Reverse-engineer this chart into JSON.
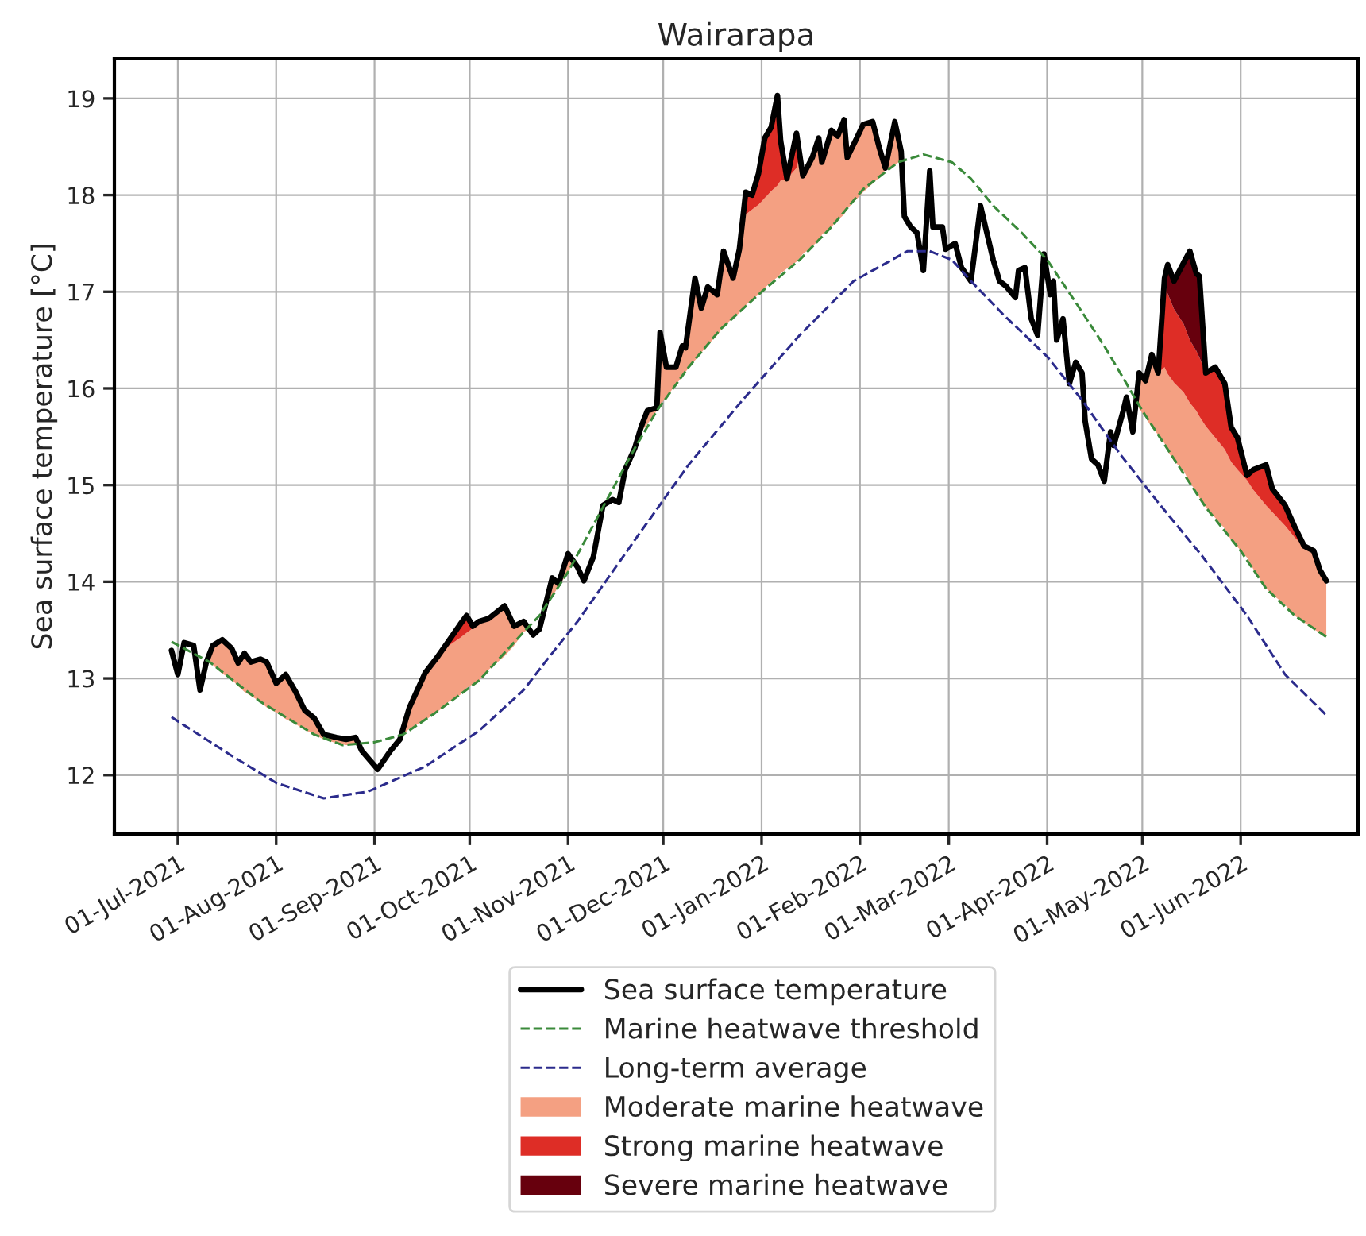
{
  "chart_data": {
    "type": "line",
    "title": "Wairarapa",
    "ylabel": "Sea surface temperature [°C]",
    "xlim": [
      "2021-06-11",
      "2022-07-08"
    ],
    "xticks": [
      {
        "value": "2021-07-01",
        "label": "01-Jul-2021"
      },
      {
        "value": "2021-08-01",
        "label": "01-Aug-2021"
      },
      {
        "value": "2021-09-01",
        "label": "01-Sep-2021"
      },
      {
        "value": "2021-10-01",
        "label": "01-Oct-2021"
      },
      {
        "value": "2021-11-01",
        "label": "01-Nov-2021"
      },
      {
        "value": "2021-12-01",
        "label": "01-Dec-2021"
      },
      {
        "value": "2022-01-01",
        "label": "01-Jan-2022"
      },
      {
        "value": "2022-02-01",
        "label": "01-Feb-2022"
      },
      {
        "value": "2022-03-01",
        "label": "01-Mar-2022"
      },
      {
        "value": "2022-04-01",
        "label": "01-Apr-2022"
      },
      {
        "value": "2022-05-01",
        "label": "01-May-2022"
      },
      {
        "value": "2022-06-01",
        "label": "01-Jun-2022"
      }
    ],
    "ylim": [
      11.39,
      19.41
    ],
    "yticks": [
      12,
      13,
      14,
      15,
      16,
      17,
      18,
      19
    ],
    "grid": true,
    "legend": "bottom",
    "series": [
      {
        "name": "Sea surface temperature",
        "color": "#000000",
        "line_style": "solid",
        "x": [
          "2021-06-29",
          "2021-07-01",
          "2021-07-03",
          "2021-07-06",
          "2021-07-08",
          "2021-07-10",
          "2021-07-12",
          "2021-07-15",
          "2021-07-18",
          "2021-07-20",
          "2021-07-22",
          "2021-07-24",
          "2021-07-27",
          "2021-07-29",
          "2021-08-01",
          "2021-08-04",
          "2021-08-07",
          "2021-08-10",
          "2021-08-13",
          "2021-08-16",
          "2021-08-20",
          "2021-08-23",
          "2021-08-26",
          "2021-08-28",
          "2021-09-02",
          "2021-09-06",
          "2021-09-09",
          "2021-09-12",
          "2021-09-17",
          "2021-09-21",
          "2021-09-24",
          "2021-09-28",
          "2021-09-30",
          "2021-10-02",
          "2021-10-04",
          "2021-10-07",
          "2021-10-12",
          "2021-10-15",
          "2021-10-18",
          "2021-10-21",
          "2021-10-23",
          "2021-10-27",
          "2021-10-29",
          "2021-11-01",
          "2021-11-04",
          "2021-11-06",
          "2021-11-09",
          "2021-11-12",
          "2021-11-15",
          "2021-11-17",
          "2021-11-19",
          "2021-11-22",
          "2021-11-24",
          "2021-11-26",
          "2021-11-29",
          "2021-11-30",
          "2021-12-02",
          "2021-12-05",
          "2021-12-07",
          "2021-12-08",
          "2021-12-11",
          "2021-12-13",
          "2021-12-15",
          "2021-12-18",
          "2021-12-20",
          "2021-12-23",
          "2021-12-25",
          "2021-12-27",
          "2021-12-29",
          "2021-12-31",
          "2022-01-02",
          "2022-01-04",
          "2022-01-06",
          "2022-01-07",
          "2022-01-09",
          "2022-01-12",
          "2022-01-14",
          "2022-01-17",
          "2022-01-19",
          "2022-01-20",
          "2022-01-23",
          "2022-01-25",
          "2022-01-27",
          "2022-01-28",
          "2022-01-31",
          "2022-02-02",
          "2022-02-05",
          "2022-02-07",
          "2022-02-09",
          "2022-02-12",
          "2022-02-14",
          "2022-02-15",
          "2022-02-17",
          "2022-02-19",
          "2022-02-21",
          "2022-02-23",
          "2022-02-24",
          "2022-02-27",
          "2022-02-28",
          "2022-03-03",
          "2022-03-05",
          "2022-03-08",
          "2022-03-11",
          "2022-03-13",
          "2022-03-15",
          "2022-03-17",
          "2022-03-19",
          "2022-03-22",
          "2022-03-23",
          "2022-03-25",
          "2022-03-27",
          "2022-03-29",
          "2022-03-31",
          "2022-04-02",
          "2022-04-03",
          "2022-04-04",
          "2022-04-06",
          "2022-04-08",
          "2022-04-10",
          "2022-04-12",
          "2022-04-13",
          "2022-04-15",
          "2022-04-17",
          "2022-04-19",
          "2022-04-21",
          "2022-04-22",
          "2022-04-25",
          "2022-04-26",
          "2022-04-28",
          "2022-04-30",
          "2022-05-02",
          "2022-05-04",
          "2022-05-06",
          "2022-05-08",
          "2022-05-09",
          "2022-05-11",
          "2022-05-14",
          "2022-05-16",
          "2022-05-18",
          "2022-05-19",
          "2022-05-21",
          "2022-05-24",
          "2022-05-27",
          "2022-05-29",
          "2022-05-31",
          "2022-06-03",
          "2022-06-05",
          "2022-06-09",
          "2022-06-11",
          "2022-06-15",
          "2022-06-18",
          "2022-06-21",
          "2022-06-24",
          "2022-06-26",
          "2022-06-28"
        ],
        "values": [
          13.29,
          13.04,
          13.37,
          13.34,
          12.88,
          13.17,
          13.34,
          13.4,
          13.31,
          13.16,
          13.26,
          13.17,
          13.2,
          13.17,
          12.95,
          13.04,
          12.87,
          12.67,
          12.59,
          12.42,
          12.39,
          12.37,
          12.39,
          12.25,
          12.06,
          12.25,
          12.37,
          12.7,
          13.06,
          13.23,
          13.37,
          13.56,
          13.65,
          13.54,
          13.59,
          13.62,
          13.75,
          13.54,
          13.59,
          13.45,
          13.51,
          14.04,
          13.98,
          14.29,
          14.15,
          14.01,
          14.26,
          14.79,
          14.85,
          14.82,
          15.16,
          15.38,
          15.6,
          15.77,
          15.8,
          16.58,
          16.22,
          16.22,
          16.44,
          16.42,
          17.14,
          16.83,
          17.05,
          16.97,
          17.42,
          17.14,
          17.44,
          18.03,
          18.0,
          18.22,
          18.59,
          18.7,
          19.03,
          18.56,
          18.17,
          18.64,
          18.2,
          18.39,
          18.59,
          18.34,
          18.67,
          18.61,
          18.78,
          18.39,
          18.59,
          18.73,
          18.76,
          18.5,
          18.28,
          18.76,
          18.45,
          17.78,
          17.67,
          17.61,
          17.22,
          18.25,
          17.67,
          17.67,
          17.44,
          17.5,
          17.25,
          17.11,
          17.89,
          17.61,
          17.33,
          17.11,
          17.06,
          16.94,
          17.22,
          17.25,
          16.72,
          16.55,
          17.39,
          16.97,
          17.11,
          16.5,
          16.72,
          16.05,
          16.27,
          16.16,
          15.66,
          15.27,
          15.21,
          15.04,
          15.55,
          15.41,
          15.77,
          15.91,
          15.55,
          16.16,
          16.08,
          16.35,
          16.16,
          17.14,
          17.28,
          17.11,
          17.3,
          17.42,
          17.19,
          17.16,
          16.16,
          16.22,
          16.05,
          15.6,
          15.49,
          15.1,
          15.16,
          15.21,
          14.96,
          14.79,
          14.57,
          14.37,
          14.32,
          14.12,
          14.01
        ]
      },
      {
        "name": "Marine heatwave threshold",
        "color": "#3a8a3a",
        "line_style": "dashed",
        "x": [
          "2021-06-29",
          "2021-07-11",
          "2021-07-27",
          "2021-08-13",
          "2021-08-22",
          "2021-09-01",
          "2021-09-10",
          "2021-09-20",
          "2021-10-04",
          "2021-10-18",
          "2021-10-23",
          "2021-11-01",
          "2021-11-11",
          "2021-11-22",
          "2021-11-29",
          "2021-12-09",
          "2021-12-19",
          "2022-01-01",
          "2022-01-13",
          "2022-01-23",
          "2022-02-02",
          "2022-02-13",
          "2022-02-21",
          "2022-03-02",
          "2022-03-08",
          "2022-03-15",
          "2022-03-24",
          "2022-04-01",
          "2022-04-10",
          "2022-04-19",
          "2022-04-26",
          "2022-05-01",
          "2022-05-11",
          "2022-05-21",
          "2022-06-01",
          "2022-06-09",
          "2022-06-18",
          "2022-06-28"
        ],
        "values": [
          13.38,
          13.17,
          12.76,
          12.42,
          12.31,
          12.34,
          12.42,
          12.64,
          12.98,
          13.48,
          13.65,
          14.1,
          14.71,
          15.38,
          15.77,
          16.22,
          16.61,
          17.0,
          17.33,
          17.67,
          18.06,
          18.34,
          18.42,
          18.34,
          18.17,
          17.89,
          17.61,
          17.33,
          16.89,
          16.44,
          16.05,
          15.77,
          15.27,
          14.77,
          14.32,
          13.93,
          13.65,
          13.43
        ]
      },
      {
        "name": "Long-term average",
        "color": "#2b2b8c",
        "line_style": "dashed",
        "x": [
          "2021-06-29",
          "2021-07-18",
          "2021-08-01",
          "2021-08-16",
          "2021-08-30",
          "2021-09-17",
          "2021-10-04",
          "2021-10-18",
          "2021-10-26",
          "2021-11-04",
          "2021-11-22",
          "2021-12-09",
          "2021-12-26",
          "2022-01-13",
          "2022-01-30",
          "2022-02-16",
          "2022-02-23",
          "2022-03-02",
          "2022-03-08",
          "2022-03-18",
          "2022-04-01",
          "2022-04-12",
          "2022-04-24",
          "2022-05-06",
          "2022-05-20",
          "2022-06-03",
          "2022-06-15",
          "2022-06-28"
        ],
        "values": [
          12.6,
          12.2,
          11.92,
          11.76,
          11.83,
          12.09,
          12.46,
          12.88,
          13.22,
          13.59,
          14.43,
          15.21,
          15.88,
          16.55,
          17.11,
          17.42,
          17.42,
          17.33,
          17.11,
          16.77,
          16.33,
          15.88,
          15.32,
          14.82,
          14.26,
          13.65,
          13.04,
          12.62
        ]
      },
      {
        "name": "Moderate marine heatwave",
        "color": "#f4a082",
        "x": [
          "2021-07-10",
          "2021-07-12",
          "2021-07-15",
          "2021-07-18",
          "2021-07-20",
          "2021-07-22",
          "2021-07-24",
          "2021-07-27",
          "2021-07-29",
          "2021-08-01",
          "2021-08-04",
          "2021-08-07",
          "2021-08-10",
          "2021-08-13",
          "2021-08-16",
          "2021-08-20",
          "2021-08-23",
          "2021-08-26",
          "2021-08-27",
          "2021-09-01",
          "2021-09-10",
          "2021-09-12",
          "2021-09-17",
          "2021-09-21",
          "2021-09-23",
          "2021-09-24",
          "2021-09-28",
          "2021-09-30",
          "2021-10-02",
          "2021-10-03",
          "2021-10-04",
          "2021-10-07",
          "2021-10-12",
          "2021-10-15",
          "2021-10-18",
          "2021-10-20",
          "2021-10-22",
          "2021-10-25",
          "2021-10-27",
          "2021-10-29",
          "2021-11-01",
          "2021-11-03",
          "2021-11-10",
          "2021-11-24",
          "2021-11-26",
          "2021-11-29",
          "2021-11-30",
          "2021-12-02",
          "2021-12-05",
          "2021-12-07",
          "2021-12-08",
          "2021-12-11",
          "2021-12-13",
          "2021-12-15",
          "2021-12-18",
          "2021-12-20",
          "2021-12-23",
          "2021-12-25",
          "2021-12-26",
          "2021-12-27",
          "2021-12-29",
          "2021-12-31",
          "2022-01-02",
          "2022-01-04",
          "2022-01-06",
          "2022-01-07",
          "2022-01-09",
          "2022-01-12",
          "2022-01-13",
          "2022-01-14",
          "2022-01-17",
          "2022-01-19",
          "2022-01-20",
          "2022-01-23",
          "2022-01-25",
          "2022-01-27",
          "2022-01-28",
          "2022-01-31",
          "2022-02-02",
          "2022-02-05",
          "2022-02-07",
          "2022-02-09",
          "2022-02-12",
          "2022-02-14",
          "2022-03-15",
          "2022-04-29",
          "2022-04-30",
          "2022-05-02",
          "2022-05-04",
          "2022-05-06",
          "2022-05-08",
          "2022-05-09",
          "2022-05-11",
          "2022-05-14",
          "2022-05-16",
          "2022-05-18",
          "2022-05-19",
          "2022-05-21",
          "2022-05-24",
          "2022-05-27",
          "2022-05-29",
          "2022-05-31",
          "2022-06-03",
          "2022-06-05",
          "2022-06-09",
          "2022-06-11",
          "2022-06-15",
          "2022-06-18",
          "2022-06-21",
          "2022-06-24",
          "2022-06-26",
          "2022-06-28"
        ],
        "lower": [
          13.17,
          13.14,
          13.05,
          12.99,
          12.92,
          12.86,
          12.82,
          12.76,
          12.7,
          12.65,
          12.58,
          12.53,
          12.47,
          12.42,
          12.37,
          12.33,
          12.31,
          12.31,
          12.32,
          null,
          12.42,
          12.48,
          12.57,
          12.66,
          12.71,
          12.75,
          12.83,
          12.9,
          12.94,
          12.96,
          12.98,
          13.09,
          13.23,
          13.34,
          13.48,
          13.52,
          null,
          13.76,
          13.85,
          13.95,
          14.1,
          14.21,
          null,
          15.55,
          15.63,
          15.77,
          15.83,
          15.91,
          16.04,
          16.12,
          16.17,
          16.29,
          16.37,
          16.45,
          16.55,
          16.64,
          16.73,
          16.78,
          16.83,
          16.86,
          16.92,
          16.97,
          17.04,
          17.1,
          17.15,
          17.19,
          17.24,
          17.31,
          17.35,
          17.39,
          17.47,
          17.53,
          17.59,
          17.67,
          17.74,
          17.8,
          17.86,
          17.96,
          18.03,
          18.12,
          18.18,
          18.26,
          18.31,
          18.36,
          null,
          15.87,
          15.79,
          15.7,
          15.6,
          15.52,
          15.43,
          15.35,
          15.25,
          15.15,
          15.02,
          14.94,
          14.87,
          14.77,
          14.66,
          14.55,
          14.43,
          14.36,
          14.25,
          14.13,
          13.93,
          13.87,
          13.76,
          13.65,
          13.58,
          13.51,
          13.47,
          13.43
        ],
        "upper": [
          13.17,
          13.34,
          13.4,
          13.31,
          13.16,
          13.26,
          13.17,
          13.2,
          13.17,
          12.95,
          13.04,
          12.87,
          12.67,
          12.59,
          12.42,
          12.39,
          12.37,
          12.39,
          12.32,
          null,
          12.48,
          12.7,
          13.06,
          13.23,
          13.32,
          13.33,
          13.42,
          13.47,
          13.52,
          13.56,
          13.59,
          13.62,
          13.75,
          13.54,
          13.59,
          13.52,
          null,
          13.76,
          14.04,
          13.98,
          14.29,
          14.21,
          null,
          15.6,
          15.77,
          15.8,
          16.58,
          16.22,
          16.22,
          16.44,
          16.42,
          17.14,
          16.83,
          17.05,
          16.97,
          17.42,
          17.14,
          17.44,
          17.77,
          17.8,
          17.85,
          17.9,
          17.97,
          18.04,
          18.1,
          18.15,
          18.17,
          18.28,
          18.4,
          18.2,
          18.39,
          18.59,
          18.34,
          18.67,
          18.61,
          18.78,
          18.39,
          18.59,
          18.73,
          18.76,
          18.5,
          18.28,
          18.76,
          18.45,
          null,
          15.87,
          16.16,
          16.08,
          16.35,
          16.16,
          16.22,
          16.15,
          16.06,
          15.96,
          15.85,
          15.77,
          15.71,
          15.61,
          15.49,
          15.37,
          15.24,
          15.16,
          15.05,
          14.95,
          14.79,
          14.72,
          14.58,
          14.46,
          14.36,
          14.32,
          14.12,
          14.01
        ],
        "values": [
          null,
          null,
          null,
          null,
          null,
          null,
          null,
          null,
          null,
          null,
          null,
          null,
          null,
          null,
          null,
          null,
          null,
          null,
          null,
          null,
          null,
          null,
          null,
          null,
          null,
          null,
          null,
          null,
          null,
          null,
          null,
          null,
          null,
          null,
          null,
          null,
          null,
          null,
          null,
          null,
          null,
          null,
          null,
          null,
          null,
          null,
          null,
          null,
          null,
          null,
          null,
          null,
          null,
          null,
          null,
          null,
          null,
          null,
          null,
          null,
          null,
          null,
          null,
          null,
          null,
          null,
          null,
          null,
          null,
          null,
          null,
          null,
          null,
          null,
          null,
          null,
          null,
          null,
          null,
          null,
          null,
          null,
          null,
          null,
          null,
          null,
          null,
          null,
          null,
          null,
          null,
          null,
          null,
          null,
          null,
          null,
          null,
          null,
          null,
          null,
          null,
          null,
          null,
          null,
          null,
          null,
          null,
          null,
          null,
          null,
          null,
          null
        ]
      },
      {
        "name": "Strong marine heatwave",
        "color": "#de2d26",
        "x": [
          "2021-09-23",
          "2021-09-24",
          "2021-09-28",
          "2021-09-30",
          "2021-10-02",
          "2021-10-03",
          "2021-11-15",
          "2021-12-26",
          "2021-12-27",
          "2021-12-29",
          "2021-12-31",
          "2022-01-02",
          "2022-01-04",
          "2022-01-06",
          "2022-01-07",
          "2022-01-09",
          "2022-01-12",
          "2022-01-13",
          "2022-03-15",
          "2022-05-06",
          "2022-05-08",
          "2022-05-09",
          "2022-05-11",
          "2022-05-14",
          "2022-05-16",
          "2022-05-18",
          "2022-05-19",
          "2022-05-21",
          "2022-05-24",
          "2022-05-27",
          "2022-05-29",
          "2022-05-31",
          "2022-06-03",
          "2022-06-05",
          "2022-06-09",
          "2022-06-11",
          "2022-06-15",
          "2022-06-18",
          "2022-06-21"
        ],
        "lower": [
          13.32,
          13.33,
          13.42,
          13.47,
          13.52,
          13.56,
          null,
          17.77,
          17.8,
          17.85,
          17.9,
          17.97,
          18.04,
          18.1,
          18.15,
          18.17,
          18.28,
          18.4,
          null,
          16.16,
          16.22,
          16.15,
          16.06,
          15.96,
          15.85,
          15.77,
          15.71,
          15.61,
          15.49,
          15.37,
          15.24,
          15.16,
          15.05,
          14.95,
          14.79,
          14.72,
          14.58,
          14.46,
          14.36
        ],
        "upper": [
          13.32,
          13.37,
          13.56,
          13.65,
          13.54,
          13.56,
          null,
          17.77,
          18.03,
          18.0,
          18.22,
          18.59,
          18.7,
          19.03,
          18.56,
          18.17,
          18.64,
          18.4,
          null,
          16.16,
          17.1,
          16.98,
          16.82,
          16.67,
          16.5,
          16.39,
          16.32,
          16.16,
          16.22,
          16.05,
          15.6,
          15.49,
          15.1,
          15.16,
          15.21,
          14.96,
          14.79,
          14.57,
          14.37
        ],
        "values": [
          null,
          null,
          null,
          null,
          null,
          null,
          null,
          null,
          null,
          null,
          null,
          null,
          null,
          null,
          null,
          null,
          null,
          null,
          null,
          null,
          null,
          null,
          null,
          null,
          null,
          null,
          null,
          null,
          null,
          null,
          null,
          null,
          null,
          null,
          null,
          null,
          null,
          null,
          null
        ]
      },
      {
        "name": "Severe marine heatwave",
        "color": "#67000d",
        "x": [
          "2022-05-08",
          "2022-05-09",
          "2022-05-11",
          "2022-05-14",
          "2022-05-16",
          "2022-05-18",
          "2022-05-19",
          "2022-05-21"
        ],
        "lower": [
          17.1,
          16.98,
          16.82,
          16.67,
          16.5,
          16.39,
          16.32,
          16.16
        ],
        "upper": [
          17.14,
          17.28,
          17.11,
          17.3,
          17.42,
          17.19,
          17.16,
          16.16
        ],
        "values": [
          null,
          null,
          null,
          null,
          null,
          null,
          null,
          null
        ]
      }
    ]
  }
}
